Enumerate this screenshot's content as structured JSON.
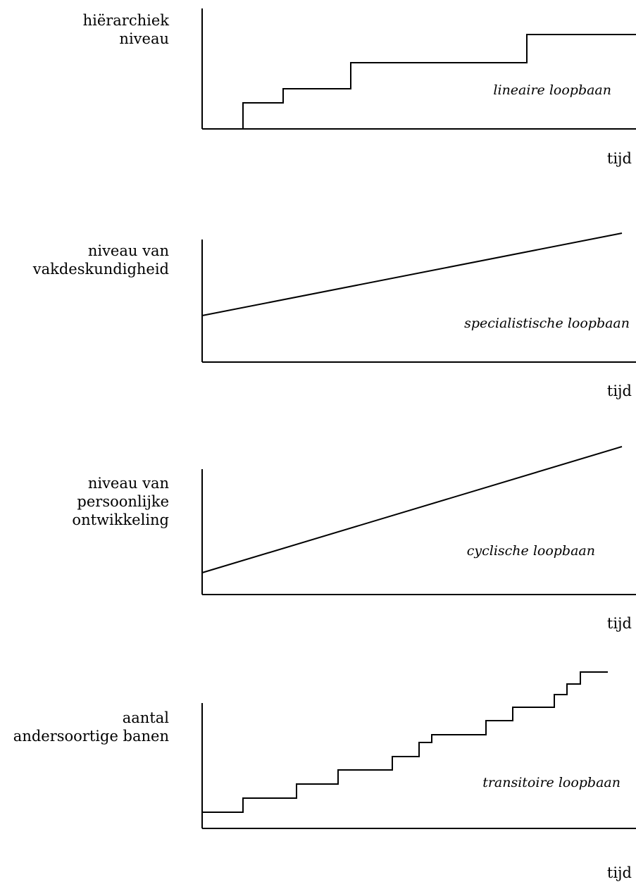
{
  "diagrams": [
    {
      "ylabel_lines": [
        "hiërarchiek",
        "niveau"
      ],
      "xlabel": "tijd",
      "career": "lineaire loopbaan",
      "shape": "steps"
    },
    {
      "ylabel_lines": [
        "niveau van",
        "vakdeskundigheid"
      ],
      "xlabel": "tijd",
      "career": "specialistische loopbaan",
      "shape": "line"
    },
    {
      "ylabel_lines": [
        "niveau van",
        "persoonlijke",
        "ontwikkeling"
      ],
      "xlabel": "tijd",
      "career": "cyclische loopbaan",
      "shape": "line"
    },
    {
      "ylabel_lines": [
        "aantal",
        "andersoortige banen"
      ],
      "xlabel": "tijd",
      "career": "transitoire loopbaan",
      "shape": "many-steps"
    }
  ]
}
